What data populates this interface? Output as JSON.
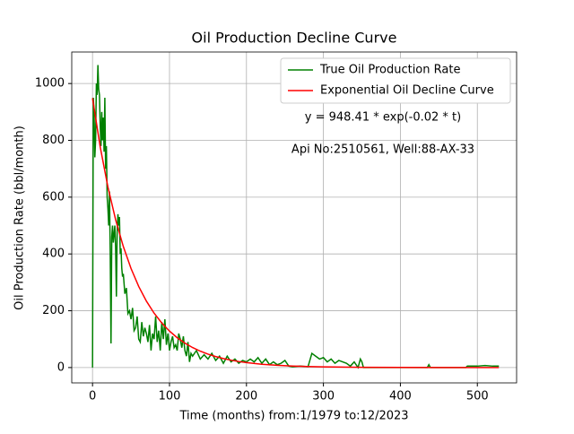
{
  "chart_data": {
    "type": "line",
    "title": "Oil Production Decline Curve",
    "xlabel": "Time (months) from:1/1979 to:12/2023",
    "ylabel": "Oil Production Rate (bbl/month)",
    "annotations": [
      "y = 948.41 * exp(-0.02 * t)",
      "Api No:2510561, Well:88-AX-33"
    ],
    "xlim": [
      -27,
      551
    ],
    "ylim": [
      -54,
      1111
    ],
    "xticks": [
      0,
      100,
      200,
      300,
      400,
      500
    ],
    "yticks": [
      0,
      200,
      400,
      600,
      800,
      1000
    ],
    "grid": true,
    "legend": "upper right",
    "series": [
      {
        "name": "True Oil Production Rate",
        "color": "#008000",
        "x": [
          0,
          1,
          2,
          3,
          4,
          5,
          6,
          7,
          8,
          9,
          10,
          11,
          12,
          13,
          14,
          15,
          16,
          17,
          18,
          19,
          20,
          21,
          22,
          23,
          24,
          25,
          26,
          27,
          28,
          29,
          30,
          31,
          32,
          33,
          34,
          35,
          36,
          37,
          38,
          39,
          40,
          42,
          44,
          46,
          48,
          50,
          52,
          54,
          56,
          58,
          60,
          62,
          64,
          66,
          68,
          70,
          72,
          74,
          76,
          78,
          80,
          82,
          84,
          86,
          88,
          90,
          92,
          94,
          96,
          98,
          100,
          102,
          104,
          106,
          108,
          110,
          112,
          114,
          116,
          118,
          120,
          122,
          124,
          126,
          128,
          130,
          135,
          140,
          145,
          150,
          155,
          160,
          165,
          170,
          175,
          180,
          185,
          190,
          195,
          200,
          205,
          210,
          215,
          220,
          225,
          230,
          235,
          240,
          245,
          250,
          255,
          260,
          270,
          280,
          285,
          290,
          295,
          300,
          305,
          310,
          315,
          320,
          325,
          330,
          335,
          340,
          345,
          348,
          350,
          352,
          360,
          400,
          435,
          437,
          439,
          485,
          487,
          500,
          510,
          520,
          528
        ],
        "values": [
          0,
          950,
          900,
          740,
          800,
          1000,
          960,
          1065,
          980,
          960,
          850,
          780,
          900,
          800,
          880,
          760,
          950,
          700,
          780,
          600,
          560,
          500,
          620,
          400,
          85,
          460,
          500,
          440,
          470,
          500,
          420,
          250,
          480,
          540,
          500,
          530,
          400,
          420,
          350,
          320,
          330,
          260,
          280,
          190,
          200,
          170,
          210,
          130,
          140,
          180,
          100,
          90,
          160,
          110,
          140,
          120,
          90,
          150,
          60,
          120,
          100,
          180,
          90,
          130,
          60,
          160,
          100,
          170,
          80,
          120,
          60,
          90,
          110,
          70,
          80,
          60,
          120,
          100,
          70,
          110,
          60,
          40,
          90,
          20,
          50,
          40,
          60,
          30,
          45,
          30,
          50,
          25,
          40,
          15,
          40,
          20,
          30,
          15,
          25,
          20,
          30,
          20,
          35,
          15,
          30,
          10,
          20,
          10,
          15,
          25,
          5,
          3,
          5,
          3,
          50,
          40,
          30,
          35,
          20,
          30,
          15,
          25,
          20,
          15,
          5,
          20,
          0,
          30,
          20,
          0,
          0,
          0,
          0,
          10,
          0,
          0,
          5,
          5,
          7,
          5,
          5
        ]
      },
      {
        "name": "Exponential Oil Decline Curve",
        "color": "#ff0000",
        "x": [
          0,
          10,
          20,
          30,
          40,
          50,
          60,
          70,
          80,
          90,
          100,
          110,
          120,
          130,
          140,
          150,
          160,
          170,
          180,
          190,
          200,
          220,
          240,
          260,
          280,
          300,
          350,
          400,
          450,
          528
        ],
        "values": [
          948.4,
          776.5,
          635.7,
          520.5,
          426.1,
          348.9,
          285.6,
          233.9,
          191.5,
          156.8,
          128.4,
          105.1,
          86.0,
          70.4,
          57.7,
          47.2,
          38.7,
          31.7,
          25.9,
          21.2,
          17.4,
          11.6,
          7.8,
          5.2,
          3.5,
          2.3,
          0.9,
          0.3,
          0.1,
          0.0
        ]
      }
    ]
  }
}
